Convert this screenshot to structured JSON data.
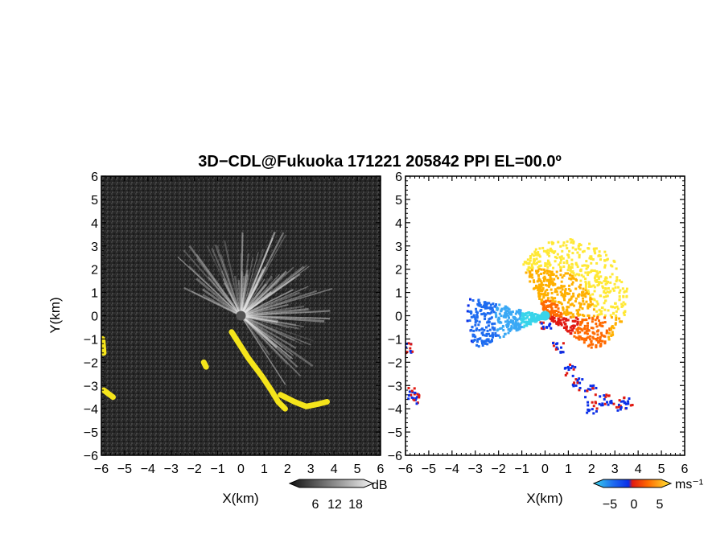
{
  "chart_data": {
    "title": "3D−CDL@Fukuoka 171221 205842 PPI EL=00.0º",
    "type": "heatmap",
    "panels": [
      {
        "name": "",
        "xlabel": "X(km)",
        "ylabel": "Y(km)",
        "xlim": [
          -6,
          6
        ],
        "ylim": [
          -6,
          6
        ],
        "x_ticks": [
          "−6",
          "−5",
          "−4",
          "−3",
          "−2",
          "−1",
          "0",
          "1",
          "2",
          "3",
          "4",
          "5",
          "6"
        ],
        "y_ticks": [
          "−6",
          "−5",
          "−4",
          "−3",
          "−2",
          "−1",
          "0",
          "1",
          "2",
          "3",
          "4",
          "5",
          "6"
        ],
        "background_color": "#2a2a2a",
        "beam_color": "#e8e8e8",
        "highlight_color": "#f5e51b",
        "colorbar": {
          "unit": "dB",
          "ticks": [
            "6",
            "12",
            "18"
          ],
          "values": [
            6,
            12,
            18
          ]
        }
      },
      {
        "name": "",
        "xlabel": "X(km)",
        "xlim": [
          -6,
          6
        ],
        "ylim": [
          -6,
          6
        ],
        "x_ticks": [
          "−6",
          "−5",
          "−4",
          "−3",
          "−2",
          "−1",
          "0",
          "1",
          "2",
          "3",
          "4",
          "5",
          "6"
        ],
        "y_ticks": [
          "−6",
          "−5",
          "−4",
          "−3",
          "−2",
          "−1",
          "0",
          "1",
          "2",
          "3",
          "4",
          "5",
          "6"
        ],
        "negative_colors": [
          "#0a2ee8",
          "#1e6cf0",
          "#3aa8f5",
          "#39d4ea"
        ],
        "positive_colors": [
          "#ffe835",
          "#ffb000",
          "#ff6a00",
          "#e11a12"
        ],
        "colorbar": {
          "unit": "ms⁻¹",
          "ticks": [
            "−5",
            "0",
            "5"
          ],
          "values": [
            -5,
            0,
            5
          ]
        }
      }
    ]
  }
}
